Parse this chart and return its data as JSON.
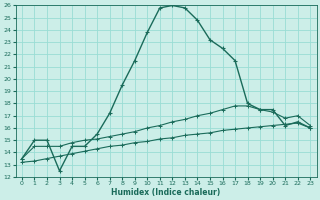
{
  "xlabel": "Humidex (Indice chaleur)",
  "xlim": [
    -0.5,
    23.5
  ],
  "ylim": [
    12,
    26
  ],
  "yticks": [
    12,
    13,
    14,
    15,
    16,
    17,
    18,
    19,
    20,
    21,
    22,
    23,
    24,
    25,
    26
  ],
  "xticks": [
    0,
    1,
    2,
    3,
    4,
    5,
    6,
    7,
    8,
    9,
    10,
    11,
    12,
    13,
    14,
    15,
    16,
    17,
    18,
    19,
    20,
    21,
    22,
    23
  ],
  "bg_color": "#cceee8",
  "grid_color": "#99ddd4",
  "line_color": "#1a6b5a",
  "line_main_x": [
    0,
    1,
    2,
    3,
    4,
    5,
    6,
    7,
    8,
    9,
    10,
    11,
    12,
    13,
    14,
    15,
    16,
    17,
    18,
    19,
    20,
    21,
    22,
    23
  ],
  "line_main_y": [
    13.5,
    15.0,
    15.0,
    12.5,
    14.5,
    14.5,
    15.5,
    17.2,
    19.5,
    21.5,
    23.8,
    25.8,
    26.0,
    25.8,
    24.8,
    23.2,
    22.5,
    21.5,
    18.0,
    17.5,
    17.5,
    16.2,
    16.5,
    16.0
  ],
  "line_upper_x": [
    0,
    1,
    2,
    3,
    4,
    5,
    6,
    7,
    8,
    9,
    10,
    11,
    12,
    13,
    14,
    15,
    16,
    17,
    18,
    19,
    20,
    21,
    22,
    23
  ],
  "line_upper_y": [
    13.5,
    14.5,
    14.5,
    14.5,
    14.8,
    15.0,
    15.1,
    15.3,
    15.5,
    15.7,
    16.0,
    16.2,
    16.5,
    16.7,
    17.0,
    17.2,
    17.5,
    17.8,
    17.8,
    17.5,
    17.3,
    16.8,
    17.0,
    16.2
  ],
  "line_lower_x": [
    0,
    1,
    2,
    3,
    4,
    5,
    6,
    7,
    8,
    9,
    10,
    11,
    12,
    13,
    14,
    15,
    16,
    17,
    18,
    19,
    20,
    21,
    22,
    23
  ],
  "line_lower_y": [
    13.2,
    13.3,
    13.5,
    13.7,
    13.9,
    14.1,
    14.3,
    14.5,
    14.6,
    14.8,
    14.9,
    15.1,
    15.2,
    15.4,
    15.5,
    15.6,
    15.8,
    15.9,
    16.0,
    16.1,
    16.2,
    16.3,
    16.4,
    16.0
  ]
}
